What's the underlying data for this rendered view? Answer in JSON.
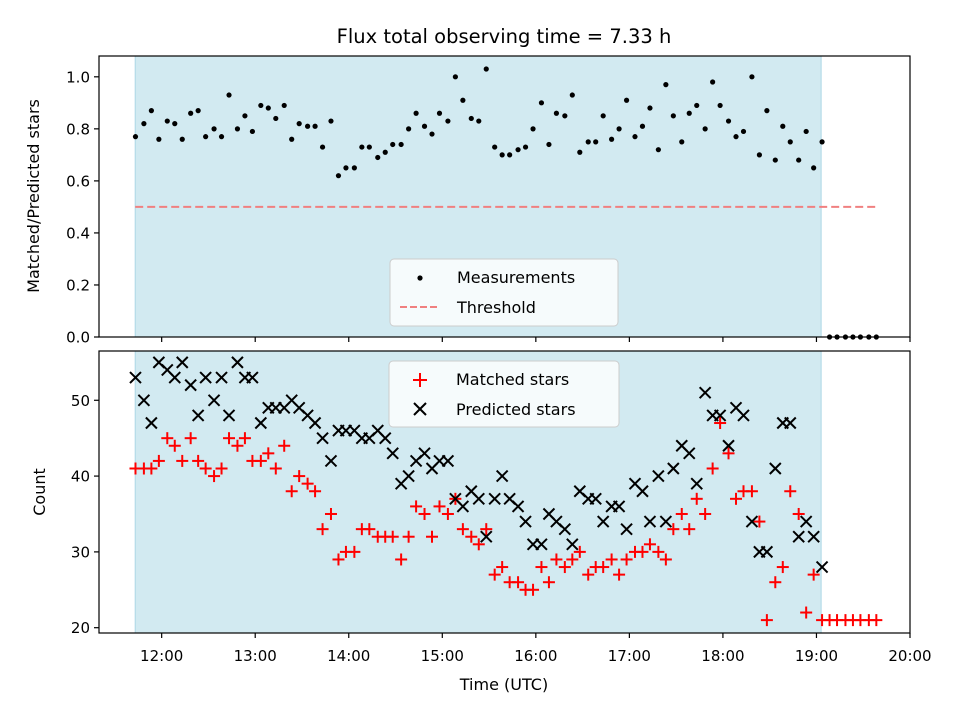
{
  "title": "Flux total observing time = 7.33 h",
  "colors": {
    "shade": "#add8e6",
    "threshold": "#f08080",
    "measurements": "#000000",
    "matched": "#ff0000",
    "predicted": "#000000"
  },
  "chart_data": [
    {
      "type": "scatter",
      "name": "top-panel",
      "ylabel": "Matched/Predicted stars",
      "xlim": [
        11.33,
        20.0
      ],
      "ylim": [
        0.0,
        1.08
      ],
      "yticks": [
        0.0,
        0.2,
        0.4,
        0.6,
        0.8,
        1.0
      ],
      "ytick_labels": [
        "0.0",
        "0.2",
        "0.4",
        "0.6",
        "0.8",
        "1.0"
      ],
      "shaded_span": [
        11.717,
        19.05
      ],
      "legend": {
        "position": "lower-center",
        "entries": [
          "Measurements",
          "Threshold"
        ]
      },
      "threshold": {
        "name": "Threshold",
        "y": 0.5,
        "x": [
          11.717,
          19.65
        ]
      },
      "series": [
        {
          "name": "Measurements",
          "marker": "dot",
          "x": [
            11.72,
            11.81,
            11.89,
            11.97,
            12.06,
            12.14,
            12.22,
            12.31,
            12.39,
            12.47,
            12.56,
            12.64,
            12.72,
            12.81,
            12.89,
            12.97,
            13.06,
            13.14,
            13.22,
            13.31,
            13.39,
            13.47,
            13.56,
            13.64,
            13.72,
            13.81,
            13.89,
            13.97,
            14.06,
            14.14,
            14.22,
            14.31,
            14.39,
            14.47,
            14.56,
            14.64,
            14.72,
            14.81,
            14.89,
            14.97,
            15.06,
            15.14,
            15.22,
            15.31,
            15.39,
            15.47,
            15.56,
            15.64,
            15.72,
            15.81,
            15.89,
            15.97,
            16.06,
            16.14,
            16.22,
            16.31,
            16.39,
            16.47,
            16.56,
            16.64,
            16.72,
            16.81,
            16.89,
            16.97,
            17.06,
            17.14,
            17.22,
            17.31,
            17.39,
            17.47,
            17.56,
            17.64,
            17.72,
            17.81,
            17.89,
            17.97,
            18.06,
            18.14,
            18.22,
            18.31,
            18.39,
            18.47,
            18.56,
            18.64,
            18.72,
            18.81,
            18.89,
            18.97,
            19.06,
            19.14,
            19.22,
            19.31,
            19.39,
            19.47,
            19.56,
            19.64
          ],
          "y": [
            0.77,
            0.82,
            0.87,
            0.76,
            0.83,
            0.82,
            0.76,
            0.86,
            0.87,
            0.77,
            0.8,
            0.77,
            0.93,
            0.8,
            0.85,
            0.79,
            0.89,
            0.88,
            0.84,
            0.89,
            0.76,
            0.82,
            0.81,
            0.81,
            0.73,
            0.83,
            0.62,
            0.65,
            0.65,
            0.73,
            0.73,
            0.69,
            0.71,
            0.74,
            0.74,
            0.8,
            0.86,
            0.81,
            0.78,
            0.86,
            0.83,
            1.0,
            0.91,
            0.84,
            0.83,
            1.03,
            0.73,
            0.7,
            0.7,
            0.72,
            0.73,
            0.8,
            0.9,
            0.74,
            0.86,
            0.85,
            0.93,
            0.71,
            0.75,
            0.75,
            0.85,
            0.76,
            0.8,
            0.91,
            0.77,
            0.81,
            0.88,
            0.72,
            0.97,
            0.85,
            0.75,
            0.86,
            0.89,
            0.8,
            0.98,
            0.89,
            0.83,
            0.77,
            0.79,
            1.0,
            0.7,
            0.87,
            0.68,
            0.81,
            0.75,
            0.68,
            0.79,
            0.65,
            0.75,
            0.0,
            0.0,
            0.0,
            0.0,
            0.0,
            0.0,
            0.0
          ]
        }
      ]
    },
    {
      "type": "scatter",
      "name": "bottom-panel",
      "xlabel": "Time (UTC)",
      "ylabel": "Count",
      "xlim": [
        11.33,
        20.0
      ],
      "ylim": [
        19.3,
        56.5
      ],
      "xticks": [
        12,
        13,
        14,
        15,
        16,
        17,
        18,
        19,
        20
      ],
      "xtick_labels": [
        "12:00",
        "13:00",
        "14:00",
        "15:00",
        "16:00",
        "17:00",
        "18:00",
        "19:00",
        "20:00"
      ],
      "yticks": [
        20,
        30,
        40,
        50
      ],
      "ytick_labels": [
        "20",
        "30",
        "40",
        "50"
      ],
      "shaded_span": [
        11.717,
        19.05
      ],
      "legend": {
        "position": "upper-center",
        "entries": [
          "Matched stars",
          "Predicted stars"
        ]
      },
      "x": [
        11.72,
        11.81,
        11.89,
        11.97,
        12.06,
        12.14,
        12.22,
        12.31,
        12.39,
        12.47,
        12.56,
        12.64,
        12.72,
        12.81,
        12.89,
        12.97,
        13.06,
        13.14,
        13.22,
        13.31,
        13.39,
        13.47,
        13.56,
        13.64,
        13.72,
        13.81,
        13.89,
        13.97,
        14.06,
        14.14,
        14.22,
        14.31,
        14.39,
        14.47,
        14.56,
        14.64,
        14.72,
        14.81,
        14.89,
        14.97,
        15.06,
        15.14,
        15.22,
        15.31,
        15.39,
        15.47,
        15.56,
        15.64,
        15.72,
        15.81,
        15.89,
        15.97,
        16.06,
        16.14,
        16.22,
        16.31,
        16.39,
        16.47,
        16.56,
        16.64,
        16.72,
        16.81,
        16.89,
        16.97,
        17.06,
        17.14,
        17.22,
        17.31,
        17.39,
        17.47,
        17.56,
        17.64,
        17.72,
        17.81,
        17.89,
        17.97,
        18.06,
        18.14,
        18.22,
        18.31,
        18.39,
        18.47,
        18.56,
        18.64,
        18.72,
        18.81,
        18.89,
        18.97,
        19.06,
        19.14,
        19.22,
        19.31,
        19.39,
        19.47,
        19.56,
        19.64
      ],
      "series": [
        {
          "name": "Matched stars",
          "marker": "plus",
          "y": [
            41,
            41,
            41,
            42,
            45,
            44,
            42,
            45,
            42,
            41,
            40,
            41,
            45,
            44,
            45,
            42,
            42,
            43,
            41,
            44,
            38,
            40,
            39,
            38,
            33,
            35,
            29,
            30,
            30,
            33,
            33,
            32,
            32,
            32,
            29,
            32,
            36,
            35,
            32,
            36,
            35,
            37,
            33,
            32,
            31,
            33,
            27,
            28,
            26,
            26,
            25,
            25,
            28,
            26,
            29,
            28,
            29,
            30,
            27,
            28,
            28,
            29,
            27,
            29,
            30,
            30,
            31,
            30,
            29,
            33,
            35,
            33,
            37,
            35,
            41,
            47,
            43,
            37,
            38,
            38,
            34,
            21,
            26,
            28,
            38,
            35,
            22,
            27,
            21,
            21,
            21,
            21,
            21,
            21,
            21,
            21
          ]
        },
        {
          "name": "Predicted stars",
          "marker": "x",
          "y": [
            53,
            50,
            47,
            55,
            54,
            53,
            55,
            52,
            48,
            53,
            50,
            53,
            48,
            55,
            53,
            53,
            47,
            49,
            49,
            49,
            50,
            49,
            48,
            47,
            45,
            42,
            46,
            46,
            46,
            45,
            45,
            46,
            45,
            43,
            39,
            40,
            42,
            43,
            41,
            42,
            42,
            37,
            36,
            38,
            37,
            32,
            37,
            40,
            37,
            36,
            34,
            31,
            31,
            35,
            34,
            33,
            31,
            38,
            37,
            37,
            34,
            36,
            36,
            33,
            39,
            38,
            34,
            40,
            34,
            41,
            44,
            43,
            39,
            51,
            48,
            48,
            44,
            49,
            48,
            34,
            30,
            30,
            41,
            47,
            47,
            32,
            34,
            32,
            28
          ]
        }
      ]
    }
  ]
}
